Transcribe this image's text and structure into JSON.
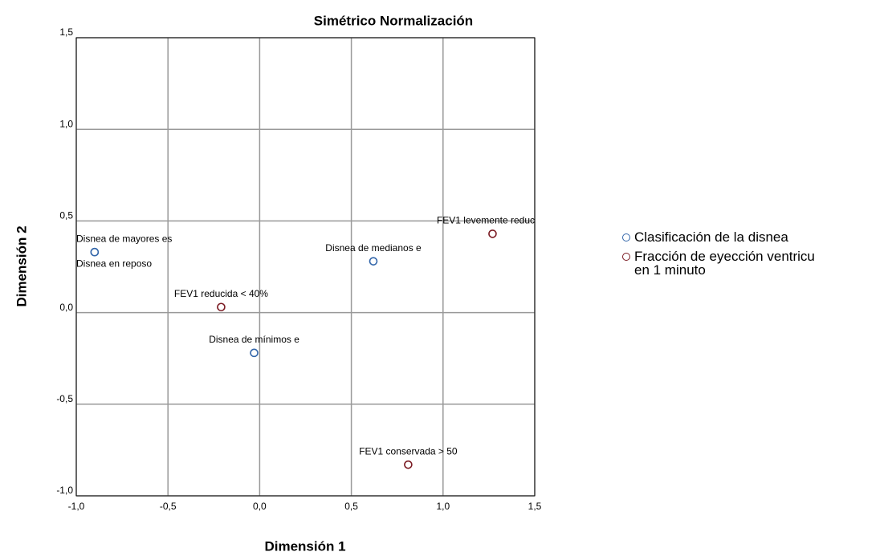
{
  "chart_data": {
    "type": "scatter",
    "title": "Simétrico Normalización",
    "x_label": "Dimensión 1",
    "y_label": "Dimensión 2",
    "xlim": [
      -1.0,
      1.5
    ],
    "ylim": [
      -1.0,
      1.5
    ],
    "xticks": [
      {
        "value": -1.0,
        "label": "-1,0"
      },
      {
        "value": -0.5,
        "label": "-0,5"
      },
      {
        "value": 0.0,
        "label": "0,0"
      },
      {
        "value": 0.5,
        "label": "0,5"
      },
      {
        "value": 1.0,
        "label": "1,0"
      },
      {
        "value": 1.5,
        "label": "1,5"
      }
    ],
    "yticks": [
      {
        "value": -1.0,
        "label": "-1,0"
      },
      {
        "value": -0.5,
        "label": "-0,5"
      },
      {
        "value": 0.0,
        "label": "0,0"
      },
      {
        "value": 0.5,
        "label": "0,5"
      },
      {
        "value": 1.0,
        "label": "1,0"
      },
      {
        "value": 1.5,
        "label": "1,5"
      }
    ],
    "grid": true,
    "series": [
      {
        "name": "Clasificación de la disnea",
        "color": "#3366aa",
        "x": [
          -0.9,
          -0.9,
          0.62,
          -0.03
        ],
        "y": [
          0.33,
          0.33,
          0.28,
          -0.22
        ],
        "labels": [
          "Disnea de mayores es",
          "Disnea en reposo",
          "Disnea de medianos e",
          "Disnea de mínimos e"
        ]
      },
      {
        "name": "Fracción de eyección ventricu\nen 1 minuto",
        "color": "#7a1a22",
        "x": [
          1.27,
          -0.21,
          0.81
        ],
        "y": [
          0.43,
          0.03,
          -0.83
        ],
        "labels": [
          "FEV1 levemente reduc",
          "FEV1 reducida < 40%",
          "FEV1 conservada > 50"
        ]
      }
    ]
  }
}
